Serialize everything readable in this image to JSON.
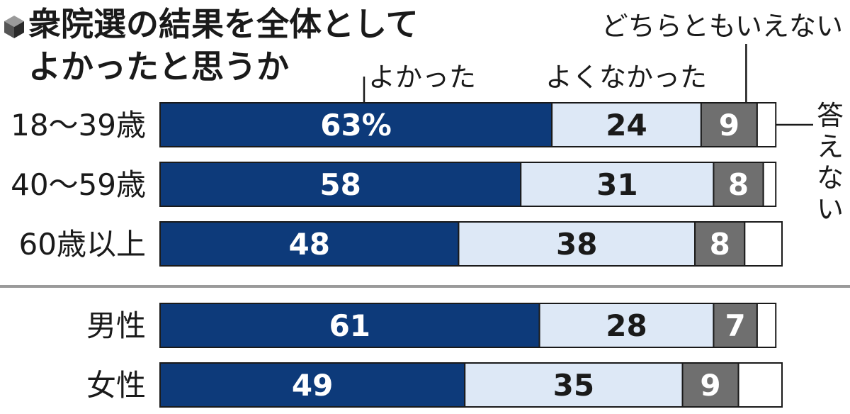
{
  "chart_data": {
    "type": "bar",
    "orientation": "horizontal",
    "stacked": true,
    "title": "衆院選の結果を全体としてよかったと思うか",
    "unit": "%",
    "categories": [
      "18〜39歳",
      "40〜59歳",
      "60歳以上",
      "男性",
      "女性"
    ],
    "series": [
      {
        "name": "よかった",
        "color": "#0d3a7a",
        "values": [
          63,
          58,
          48,
          61,
          49
        ]
      },
      {
        "name": "よくなかった",
        "color": "#dde8f6",
        "values": [
          24,
          31,
          38,
          28,
          35
        ]
      },
      {
        "name": "どちらともいえない",
        "color": "#6f6f6f",
        "values": [
          9,
          8,
          8,
          7,
          9
        ]
      },
      {
        "name": "答えない",
        "color": "#ffffff",
        "values": [
          3,
          2,
          6,
          3,
          7
        ]
      }
    ],
    "value_labels": [
      [
        "63%",
        "24",
        "9"
      ],
      [
        "58",
        "31",
        "8"
      ],
      [
        "48",
        "38",
        "8"
      ],
      [
        "61",
        "28",
        "7"
      ],
      [
        "49",
        "35",
        "9"
      ]
    ],
    "title_lines": [
      "衆院選の結果を全体として",
      "よかったと思うか"
    ],
    "legend_no_answer_chars": [
      "答",
      "え",
      "な",
      "い"
    ],
    "xlim": [
      0,
      100
    ],
    "groups": [
      [
        "18〜39歳",
        "40〜59歳",
        "60歳以上"
      ],
      [
        "男性",
        "女性"
      ]
    ]
  }
}
